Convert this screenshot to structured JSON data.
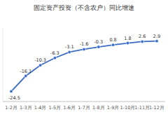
{
  "chart_data": {
    "type": "line",
    "title": "固定资产投资（不含农户）同比增速",
    "categories": [
      "1-2月",
      "1-3月",
      "1-4月",
      "1-5月",
      "1-6月",
      "1-7月",
      "1-8月",
      "1-9月",
      "1-10月",
      "1-11月",
      "1-12月"
    ],
    "values": [
      -24.5,
      -16.1,
      -10.3,
      -6.3,
      -3.1,
      -1.6,
      -0.3,
      0.8,
      1.8,
      2.6,
      2.9
    ],
    "color": "#3a6cc6",
    "marker": "circle",
    "data_labels": true,
    "ylim": [
      -30,
      10
    ],
    "tick_labels": "x",
    "grid": false
  }
}
